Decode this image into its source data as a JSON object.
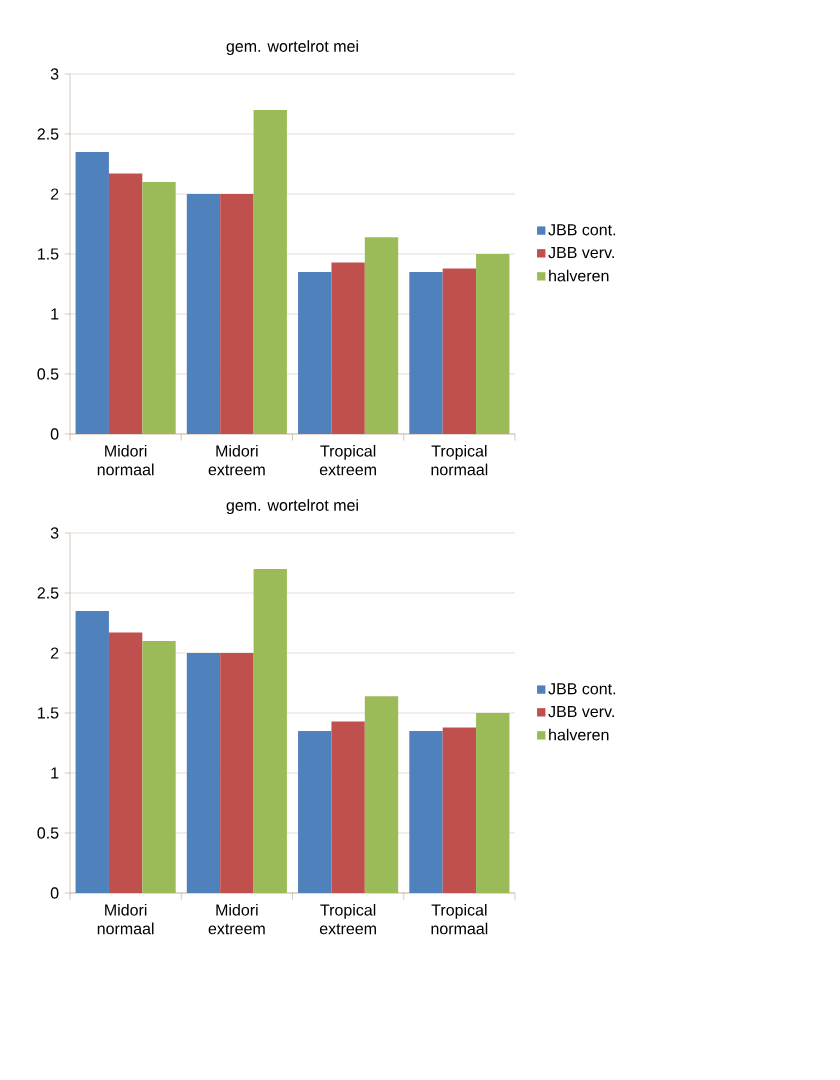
{
  "chart_data": [
    {
      "type": "bar",
      "title": "gem. wortelrot mei",
      "categories": [
        "Midori normaal",
        "Midori extreem",
        "Tropical extreem",
        "Tropical normaal"
      ],
      "series": [
        {
          "name": "JBB cont.",
          "color": "#4f81bd",
          "values": [
            2.35,
            2.0,
            1.35,
            1.35
          ]
        },
        {
          "name": "JBB verv.",
          "color": "#c0504d",
          "values": [
            2.17,
            2.0,
            1.43,
            1.38
          ]
        },
        {
          "name": "halveren",
          "color": "#9bbb59",
          "values": [
            2.1,
            2.7,
            1.64,
            1.5
          ]
        }
      ],
      "ylim": [
        0,
        3
      ],
      "yticks": [
        0,
        0.5,
        1,
        1.5,
        2,
        2.5,
        3
      ],
      "grid": "y",
      "legend": "right"
    },
    {
      "type": "bar",
      "title": "gem. wortelrot mei",
      "categories": [
        "Midori normaal",
        "Midori extreem",
        "Tropical extreem",
        "Tropical normaal"
      ],
      "series": [
        {
          "name": "JBB cont.",
          "color": "#4f81bd",
          "values": [
            2.35,
            2.0,
            1.35,
            1.35
          ]
        },
        {
          "name": "JBB verv.",
          "color": "#c0504d",
          "values": [
            2.17,
            2.0,
            1.43,
            1.38
          ]
        },
        {
          "name": "halveren",
          "color": "#9bbb59",
          "values": [
            2.1,
            2.7,
            1.64,
            1.5
          ]
        }
      ],
      "ylim": [
        0,
        3
      ],
      "yticks": [
        0,
        0.5,
        1,
        1.5,
        2,
        2.5,
        3
      ],
      "grid": "y",
      "legend": "right"
    }
  ]
}
